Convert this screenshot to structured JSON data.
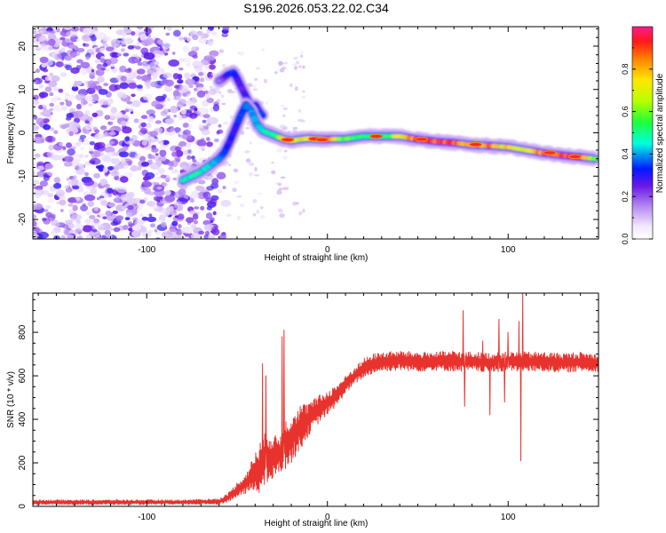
{
  "title": "S196.2026.053.22.02.C34",
  "chart_data": [
    {
      "type": "heatmap",
      "id": "spectrogram",
      "title": "S196.2026.053.22.02.C34",
      "xlabel": "Height of straight line (km)",
      "ylabel": "Frequency (Hz)",
      "xlim": [
        -163,
        150
      ],
      "ylim": [
        -24.5,
        24.5
      ],
      "xticks": [
        -100,
        0,
        100
      ],
      "yticks": [
        -20,
        -10,
        0,
        10,
        20
      ],
      "colorbar": {
        "label": "Normalized spectral amplitude",
        "range": [
          0,
          1
        ],
        "ticks": [
          0.0,
          0.2,
          0.4,
          0.6,
          0.8
        ],
        "tick_labels": [
          "0.0",
          "0.2",
          "0.4",
          "0.6",
          "0.8"
        ],
        "colormap": "rainbow"
      },
      "noise_region": {
        "x_range": [
          -163,
          -55
        ],
        "y_range": [
          -24.5,
          24.5
        ],
        "amplitude": "0.1-0.35"
      },
      "trace": {
        "name": "Doppler trace",
        "x": [
          -80,
          -75,
          -70,
          -65,
          -60,
          -57,
          -54,
          -51,
          -48,
          -45,
          -42,
          -39,
          -36,
          -33,
          -30,
          -27,
          -24,
          -20,
          -15,
          -10,
          -5,
          0,
          10,
          20,
          30,
          40,
          50,
          60,
          70,
          80,
          90,
          100,
          110,
          120,
          130,
          140,
          148
        ],
        "y": [
          -11,
          -10,
          -9,
          -7.5,
          -6,
          -4.5,
          -2,
          1,
          4,
          6.5,
          5,
          2,
          0.5,
          0,
          -0.5,
          -1,
          -1.5,
          -1.8,
          -1.5,
          -1.3,
          -1.5,
          -1.5,
          -1.4,
          -0.8,
          -0.8,
          -0.8,
          -1.5,
          -2,
          -2.3,
          -2.8,
          -3,
          -3.3,
          -4,
          -4.7,
          -5.2,
          -5.6,
          -6
        ],
        "amplitude": [
          0.45,
          0.5,
          0.5,
          0.45,
          0.4,
          0.35,
          0.3,
          0.3,
          0.35,
          0.4,
          0.4,
          0.4,
          0.45,
          0.5,
          0.5,
          0.55,
          0.8,
          0.75,
          0.7,
          0.8,
          0.7,
          0.85,
          0.6,
          0.55,
          0.5,
          0.7,
          0.9,
          0.95,
          0.9,
          0.8,
          0.85,
          0.75,
          0.7,
          0.9,
          0.95,
          0.95,
          0.6
        ]
      },
      "branch": {
        "name": "Upper branch",
        "x": [
          -60,
          -58,
          -55,
          -52,
          -50,
          -47,
          -44,
          -42,
          -40,
          -38,
          -36
        ],
        "y": [
          12,
          12.5,
          13.5,
          14,
          12.5,
          10,
          7.5,
          5.5,
          6.5,
          5,
          4
        ],
        "amplitude": [
          0.15,
          0.2,
          0.3,
          0.35,
          0.3,
          0.25,
          0.3,
          0.3,
          0.3,
          0.35,
          0.35
        ]
      }
    },
    {
      "type": "line",
      "id": "snr",
      "xlabel": "Height of straight line (km)",
      "ylabel": "SNR (10 * v/v)",
      "xlim": [
        -163,
        150
      ],
      "ylim": [
        0,
        980
      ],
      "xticks": [
        -100,
        0,
        100
      ],
      "yticks": [
        0,
        200,
        400,
        600,
        800
      ],
      "series": [
        {
          "name": "SNR",
          "color": "#e8322d",
          "envelope_x": [
            -163,
            -130,
            -100,
            -80,
            -60,
            -55,
            -50,
            -45,
            -40,
            -37,
            -35,
            -33,
            -30,
            -27,
            -23,
            -20,
            -15,
            -10,
            -5,
            0,
            5,
            10,
            15,
            20,
            25,
            30,
            40,
            50,
            60,
            70,
            80,
            90,
            100,
            110,
            120,
            130,
            140,
            150
          ],
          "envelope_low": [
            8,
            8,
            8,
            8,
            10,
            20,
            40,
            60,
            70,
            60,
            80,
            100,
            120,
            150,
            170,
            200,
            260,
            330,
            380,
            420,
            460,
            520,
            560,
            590,
            610,
            620,
            625,
            620,
            625,
            620,
            620,
            615,
            620,
            620,
            620,
            615,
            620,
            620
          ],
          "envelope_high": [
            30,
            30,
            30,
            30,
            35,
            60,
            110,
            150,
            250,
            300,
            330,
            350,
            330,
            320,
            400,
            430,
            470,
            480,
            510,
            530,
            560,
            600,
            640,
            680,
            700,
            710,
            715,
            710,
            710,
            715,
            710,
            705,
            710,
            710,
            710,
            705,
            710,
            700
          ],
          "spikes": [
            {
              "x": -36,
              "y": 655
            },
            {
              "x": -34,
              "y": 600
            },
            {
              "x": -25,
              "y": 780
            },
            {
              "x": -24,
              "y": 810
            },
            {
              "x": 75,
              "y": 900
            },
            {
              "x": 76,
              "y": 460
            },
            {
              "x": 86,
              "y": 760
            },
            {
              "x": 90,
              "y": 420
            },
            {
              "x": 95,
              "y": 860
            },
            {
              "x": 98,
              "y": 480
            },
            {
              "x": 100,
              "y": 800
            },
            {
              "x": 106,
              "y": 850
            },
            {
              "x": 107,
              "y": 210
            },
            {
              "x": 108,
              "y": 980
            }
          ]
        }
      ]
    }
  ]
}
